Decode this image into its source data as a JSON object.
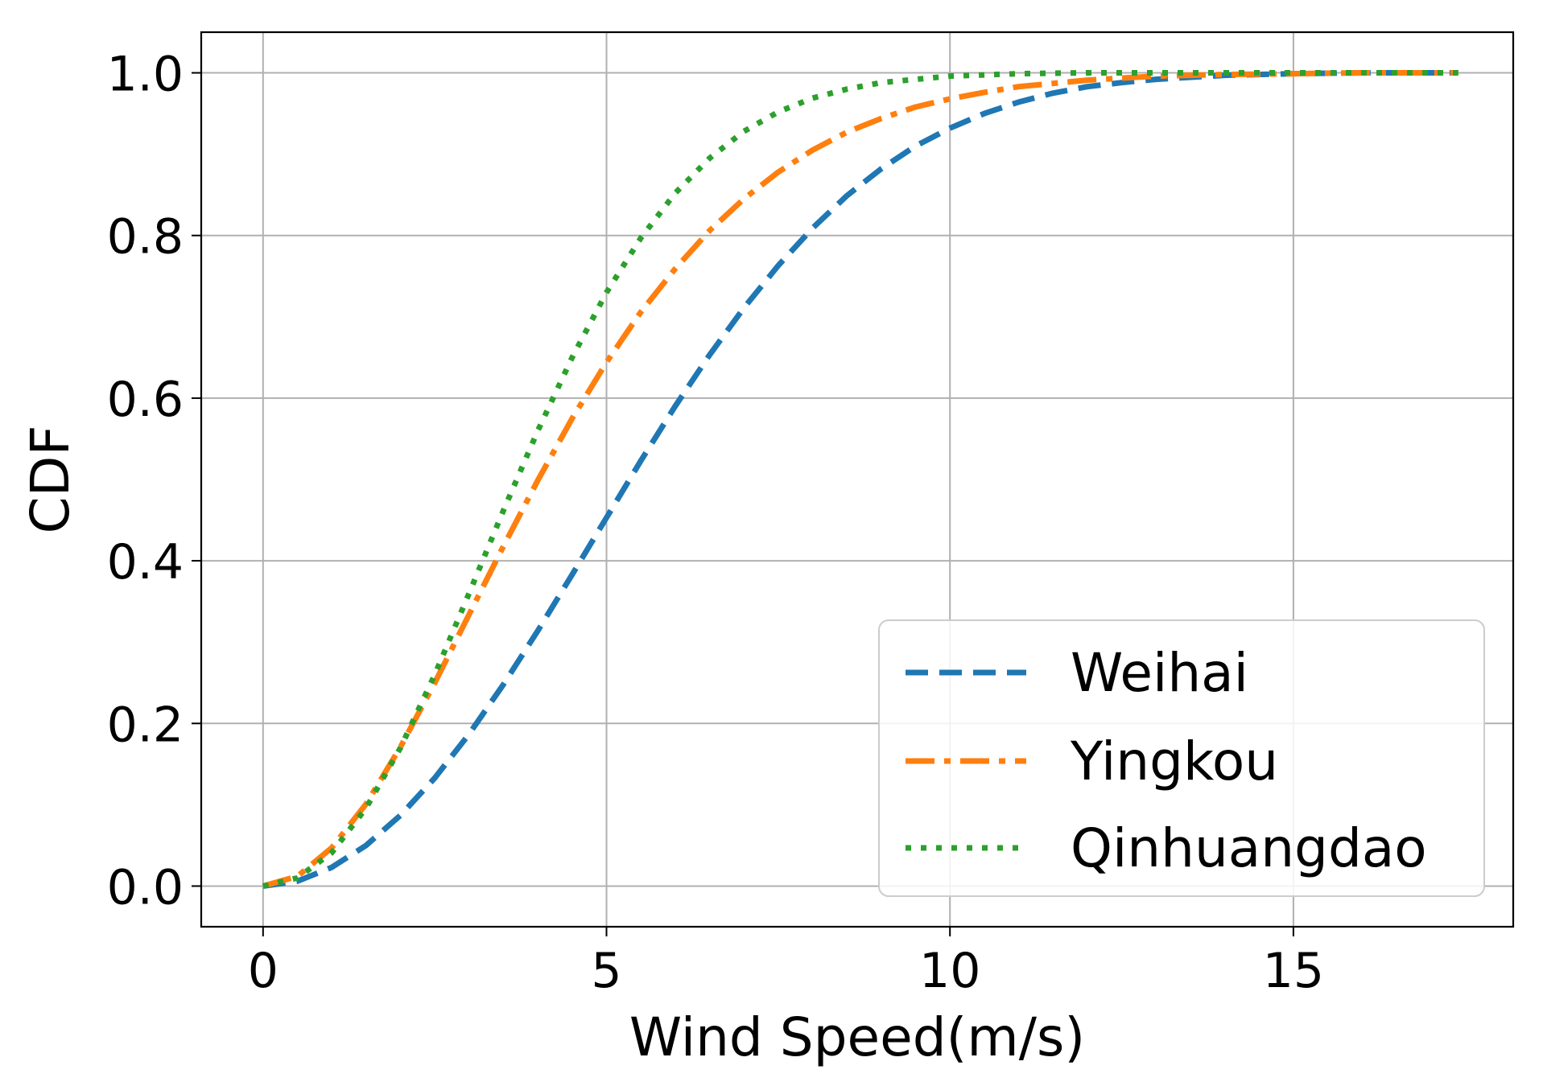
{
  "chart_data": {
    "type": "line",
    "title": "",
    "xlabel": "Wind Speed(m/s)",
    "ylabel": "CDF",
    "xlim": [
      -0.9,
      18.2
    ],
    "ylim": [
      -0.05,
      1.05
    ],
    "grid": true,
    "legend_position": "lower-right",
    "x_ticks": [
      0,
      5,
      10,
      15
    ],
    "x_tick_labels": [
      "0",
      "5",
      "10",
      "15"
    ],
    "y_ticks": [
      0.0,
      0.2,
      0.4,
      0.6,
      0.8,
      1.0
    ],
    "y_tick_labels": [
      "0.0",
      "0.2",
      "0.4",
      "0.6",
      "0.8",
      "1.0"
    ],
    "series": [
      {
        "name": "Weihai",
        "color": "#1f77b4",
        "style": "dashed",
        "x": [
          0,
          0.5,
          1,
          1.5,
          2,
          2.5,
          3,
          3.5,
          4,
          4.5,
          5,
          5.5,
          6,
          6.5,
          7,
          7.5,
          8,
          8.5,
          9,
          9.5,
          10,
          10.5,
          11,
          11.5,
          12,
          12.5,
          13,
          14,
          15,
          16,
          17.4
        ],
        "y": [
          0,
          0.006,
          0.023,
          0.05,
          0.087,
          0.133,
          0.187,
          0.248,
          0.314,
          0.383,
          0.453,
          0.523,
          0.59,
          0.653,
          0.711,
          0.763,
          0.809,
          0.849,
          0.882,
          0.91,
          0.932,
          0.95,
          0.964,
          0.975,
          0.983,
          0.988,
          0.992,
          0.997,
          0.999,
          1.0,
          1.0
        ]
      },
      {
        "name": "Yingkou",
        "color": "#ff7f0e",
        "style": "dashdot",
        "x": [
          0,
          0.5,
          1,
          1.5,
          2,
          2.5,
          3,
          3.5,
          4,
          4.5,
          5,
          5.5,
          6,
          6.5,
          7,
          7.5,
          8,
          8.5,
          9,
          9.5,
          10,
          10.5,
          11,
          11.5,
          12,
          13,
          14,
          15,
          16,
          17.4
        ],
        "y": [
          0,
          0.012,
          0.047,
          0.101,
          0.171,
          0.25,
          0.334,
          0.418,
          0.499,
          0.575,
          0.644,
          0.706,
          0.759,
          0.806,
          0.845,
          0.878,
          0.905,
          0.927,
          0.944,
          0.958,
          0.968,
          0.976,
          0.983,
          0.987,
          0.991,
          0.996,
          0.998,
          0.999,
          1.0,
          1.0
        ]
      },
      {
        "name": "Qinhuangdao",
        "color": "#2ca02c",
        "style": "dotted",
        "x": [
          0,
          0.5,
          1,
          1.5,
          2,
          2.5,
          3,
          3.5,
          4,
          4.5,
          5,
          5.5,
          6,
          6.5,
          7,
          7.5,
          8,
          8.5,
          9,
          10,
          11,
          12,
          13,
          14,
          15,
          16,
          17.4
        ],
        "y": [
          0,
          0.01,
          0.041,
          0.096,
          0.17,
          0.26,
          0.36,
          0.462,
          0.56,
          0.65,
          0.73,
          0.797,
          0.852,
          0.895,
          0.928,
          0.952,
          0.969,
          0.98,
          0.988,
          0.996,
          0.999,
          1.0,
          1.0,
          1.0,
          1.0,
          1.0,
          1.0
        ]
      }
    ]
  }
}
